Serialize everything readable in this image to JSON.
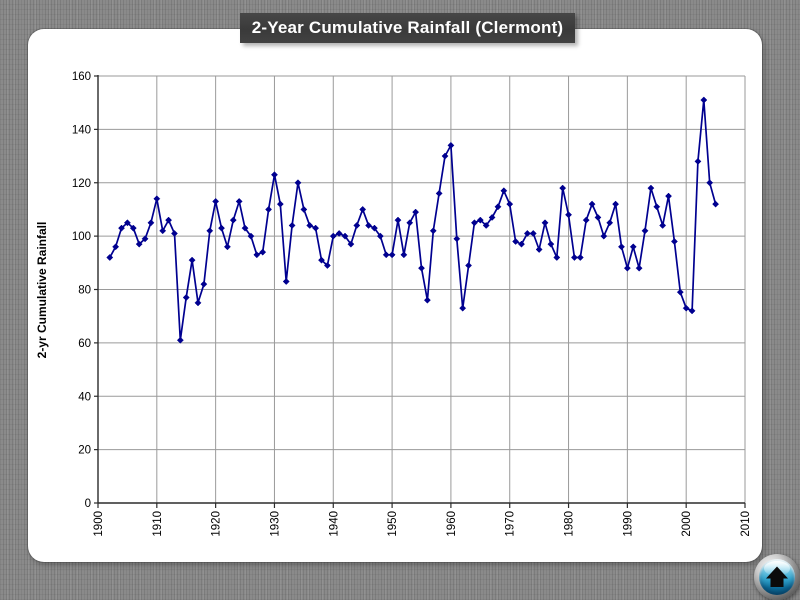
{
  "title_bar": {
    "text": "2-Year Cumulative Rainfall (Clermont)"
  },
  "home_button": {
    "name": "home"
  },
  "colors": {
    "line": "#000090",
    "marker": "#000090",
    "gridline": "#9a9a9a",
    "axis": "#2b2b2b",
    "title_bar_bg": "#3a3a3a",
    "card_bg": "#ffffff",
    "background": "#8a8a8a",
    "button_blue": "#35a6cf"
  },
  "chart_data": {
    "type": "line",
    "title": "2-Year Cumulative Rainfall (Clermont)",
    "xlabel": "",
    "ylabel": "2-yr Cumulative Rainfall",
    "xlim": [
      1900,
      2010
    ],
    "ylim": [
      0,
      160
    ],
    "x_ticks": [
      1900,
      1910,
      1920,
      1930,
      1940,
      1950,
      1960,
      1970,
      1980,
      1990,
      2000,
      2010
    ],
    "y_ticks": [
      0,
      20,
      40,
      60,
      80,
      100,
      120,
      140,
      160
    ],
    "grid": true,
    "legend_position": "none",
    "marker": "diamond",
    "series": [
      {
        "name": "2-yr Cumulative Rainfall",
        "start_year": 1902,
        "x": [
          1902,
          1903,
          1904,
          1905,
          1906,
          1907,
          1908,
          1909,
          1910,
          1911,
          1912,
          1913,
          1914,
          1915,
          1916,
          1917,
          1918,
          1919,
          1920,
          1921,
          1922,
          1923,
          1924,
          1925,
          1926,
          1927,
          1928,
          1929,
          1930,
          1931,
          1932,
          1933,
          1934,
          1935,
          1936,
          1937,
          1938,
          1939,
          1940,
          1941,
          1942,
          1943,
          1944,
          1945,
          1946,
          1947,
          1948,
          1949,
          1950,
          1951,
          1952,
          1953,
          1954,
          1955,
          1956,
          1957,
          1958,
          1959,
          1960,
          1961,
          1962,
          1963,
          1964,
          1965,
          1966,
          1967,
          1968,
          1969,
          1970,
          1971,
          1972,
          1973,
          1974,
          1975,
          1976,
          1977,
          1978,
          1979,
          1980,
          1981,
          1982,
          1983,
          1984,
          1985,
          1986,
          1987,
          1988,
          1989,
          1990,
          1991,
          1992,
          1993,
          1994,
          1995,
          1996,
          1997,
          1998,
          1999,
          2000,
          2001,
          2002,
          2003,
          2004,
          2005
        ],
        "y": [
          92,
          96,
          103,
          105,
          103,
          97,
          99,
          105,
          114,
          102,
          106,
          101,
          61,
          77,
          91,
          75,
          82,
          102,
          113,
          103,
          96,
          106,
          113,
          103,
          100,
          93,
          94,
          110,
          123,
          112,
          83,
          104,
          120,
          110,
          104,
          103,
          91,
          89,
          100,
          101,
          100,
          97,
          104,
          110,
          104,
          103,
          100,
          93,
          93,
          106,
          93,
          105,
          109,
          88,
          76,
          102,
          116,
          130,
          134,
          99,
          73,
          89,
          105,
          106,
          104,
          107,
          111,
          117,
          112,
          98,
          97,
          101,
          101,
          95,
          105,
          97,
          92,
          118,
          108,
          92,
          92,
          106,
          112,
          107,
          100,
          105,
          112,
          96,
          88,
          96,
          88,
          102,
          118,
          111,
          104,
          115,
          98,
          79,
          73,
          72,
          128,
          151,
          120,
          112
        ]
      }
    ]
  }
}
